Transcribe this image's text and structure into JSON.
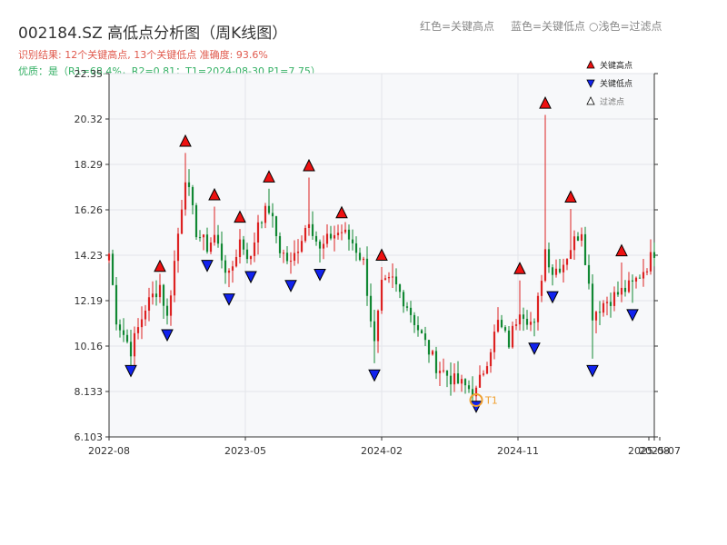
{
  "title": "002184.SZ 高低点分析图（周K线图）",
  "summary": {
    "line1": "识别结果: 12个关键高点, 13个关键低点   准确度: 93.6%",
    "line2": "优质：是（R1=68.4%，R2=0.81；T1=2024-08-30 P1=7.75）"
  },
  "header_legend": [
    {
      "label": "红色=关键高点"
    },
    {
      "label": "蓝色=关键低点"
    },
    {
      "label": "○浅色=过滤点"
    }
  ],
  "chart_data": {
    "type": "candlestick",
    "ylim": [
      6.103,
      22.35
    ],
    "y_ticks": [
      "6.103",
      "8.133",
      "10.16",
      "12.19",
      "14.23",
      "16.26",
      "18.29",
      "20.32",
      "22.35"
    ],
    "x_tick_labels": [
      "2022-08",
      "2023-05",
      "2024-02",
      "2024-11",
      "2025-08",
      "2025-07"
    ],
    "legend": [
      {
        "label": "关键高点",
        "marker": "triangle-up",
        "color": "#ee1111"
      },
      {
        "label": "关键低点",
        "marker": "triangle-down",
        "color": "#1122ee"
      },
      {
        "label": "过滤点",
        "marker": "triangle-up-hollow",
        "color": "#ffffff"
      }
    ],
    "colors": {
      "up": "#dd2222",
      "down": "#118833",
      "high_marker": "#ee1111",
      "low_marker": "#1122ee",
      "t1_marker": "#f0a030"
    },
    "t1_label": "T1",
    "t1": {
      "index": 101,
      "price": 7.75
    },
    "key_highs": [
      {
        "index": 14,
        "price": 13.3
      },
      {
        "index": 21,
        "price": 18.9
      },
      {
        "index": 29,
        "price": 16.5
      },
      {
        "index": 36,
        "price": 15.5
      },
      {
        "index": 44,
        "price": 17.3
      },
      {
        "index": 55,
        "price": 17.8
      },
      {
        "index": 64,
        "price": 15.7
      },
      {
        "index": 75,
        "price": 13.8
      },
      {
        "index": 113,
        "price": 13.2
      },
      {
        "index": 120,
        "price": 20.6
      },
      {
        "index": 127,
        "price": 16.4
      },
      {
        "index": 141,
        "price": 14.0
      }
    ],
    "key_lows": [
      {
        "index": 6,
        "price": 9.5
      },
      {
        "index": 16,
        "price": 11.1
      },
      {
        "index": 27,
        "price": 14.2
      },
      {
        "index": 33,
        "price": 12.7
      },
      {
        "index": 39,
        "price": 13.7
      },
      {
        "index": 50,
        "price": 13.3
      },
      {
        "index": 58,
        "price": 13.8
      },
      {
        "index": 73,
        "price": 9.3
      },
      {
        "index": 101,
        "price": 7.9
      },
      {
        "index": 117,
        "price": 10.5
      },
      {
        "index": 122,
        "price": 12.8
      },
      {
        "index": 133,
        "price": 9.5
      },
      {
        "index": 144,
        "price": 12.0
      }
    ],
    "anchors": [
      [
        0,
        14.3
      ],
      [
        2,
        11.4
      ],
      [
        6,
        10.0
      ],
      [
        10,
        11.9
      ],
      [
        14,
        12.9
      ],
      [
        16,
        11.4
      ],
      [
        19,
        15.2
      ],
      [
        21,
        17.8
      ],
      [
        24,
        15.3
      ],
      [
        27,
        14.6
      ],
      [
        29,
        15.1
      ],
      [
        33,
        13.2
      ],
      [
        36,
        14.9
      ],
      [
        39,
        14.0
      ],
      [
        41,
        15.8
      ],
      [
        44,
        16.3
      ],
      [
        47,
        14.5
      ],
      [
        50,
        13.8
      ],
      [
        55,
        15.9
      ],
      [
        58,
        14.4
      ],
      [
        61,
        15.1
      ],
      [
        64,
        15.3
      ],
      [
        67,
        14.8
      ],
      [
        70,
        13.9
      ],
      [
        73,
        10.2
      ],
      [
        75,
        12.8
      ],
      [
        78,
        13.1
      ],
      [
        82,
        12.0
      ],
      [
        86,
        10.6
      ],
      [
        90,
        9.3
      ],
      [
        95,
        8.6
      ],
      [
        101,
        8.1
      ],
      [
        104,
        9.6
      ],
      [
        107,
        11.2
      ],
      [
        110,
        10.3
      ],
      [
        113,
        11.9
      ],
      [
        117,
        11.0
      ],
      [
        120,
        14.5
      ],
      [
        122,
        13.5
      ],
      [
        125,
        13.9
      ],
      [
        127,
        14.6
      ],
      [
        130,
        15.4
      ],
      [
        133,
        11.6
      ],
      [
        136,
        12.1
      ],
      [
        139,
        12.4
      ],
      [
        141,
        12.6
      ],
      [
        144,
        12.9
      ],
      [
        148,
        13.8
      ],
      [
        150,
        14.4
      ]
    ],
    "candle_count": 151
  }
}
